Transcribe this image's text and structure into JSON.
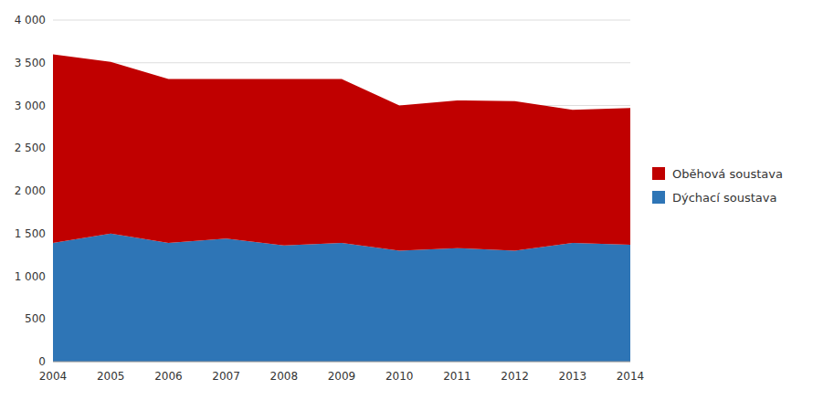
{
  "chart_data": {
    "type": "area",
    "stacked": true,
    "x": [
      2004,
      2005,
      2006,
      2007,
      2008,
      2009,
      2010,
      2011,
      2012,
      2013,
      2014
    ],
    "series": [
      {
        "name": "Dýchací soustava",
        "color": "#2E75B6",
        "values": [
          1390,
          1500,
          1390,
          1440,
          1360,
          1390,
          1300,
          1330,
          1300,
          1390,
          1370
        ]
      },
      {
        "name": "Oběhová soustava",
        "color": "#C00000",
        "values": [
          2210,
          2010,
          1920,
          1870,
          1950,
          1920,
          1700,
          1730,
          1750,
          1560,
          1600
        ]
      }
    ],
    "xlim": [
      2004,
      2014
    ],
    "xticks": [
      2004,
      2005,
      2006,
      2007,
      2008,
      2009,
      2010,
      2011,
      2012,
      2013,
      2014
    ],
    "ylim": [
      0,
      4000
    ],
    "yticks": [
      0,
      500,
      {
        "value": 1000,
        "label": "1 000"
      },
      {
        "value": 1500,
        "label": "1 500"
      },
      {
        "value": 2000,
        "label": "2 000"
      },
      {
        "value": 2500,
        "label": "2 500"
      },
      {
        "value": 3000,
        "label": "3 000"
      },
      {
        "value": 3500,
        "label": "3 500"
      },
      {
        "value": 4000,
        "label": "4 000"
      }
    ],
    "grid": true,
    "legend": "right"
  }
}
